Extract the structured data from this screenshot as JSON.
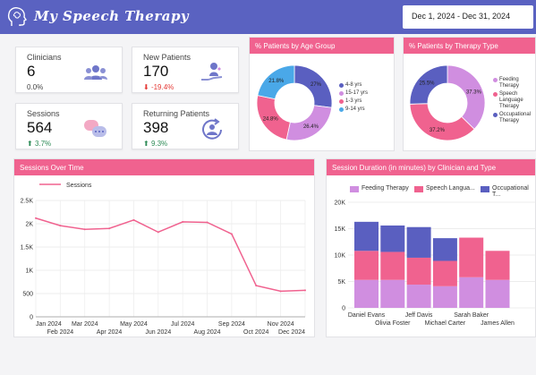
{
  "app": {
    "title": "My Speech Therapy"
  },
  "filters": {
    "date_range": "Dec 1, 2024 - Dec 31, 2024"
  },
  "kpis": {
    "clinicians": {
      "label": "Clinicians",
      "value": "6",
      "delta": "0.0%"
    },
    "new_patients": {
      "label": "New Patients",
      "value": "170",
      "delta": "-19.4%"
    },
    "sessions": {
      "label": "Sessions",
      "value": "564",
      "delta": "3.7%"
    },
    "returning_patients": {
      "label": "Returning Patients",
      "value": "398",
      "delta": "9.3%"
    }
  },
  "colors": {
    "header": "#5a62c1",
    "accent_pink": "#f0628f",
    "purple": "#5a5fc0",
    "lilac": "#d08ee0",
    "blue": "#4aa8e8",
    "pink": "#f0628f",
    "positive": "#2e8b57",
    "negative": "#e53935"
  },
  "panels": {
    "age": {
      "title": "% Patients by Age Group"
    },
    "therapy": {
      "title": "% Patients by Therapy Type"
    },
    "sessions_time": {
      "title": "Sessions Over Time"
    },
    "duration": {
      "title": "Session Duration (in minutes) by Clinician and Type"
    }
  },
  "chart_data": [
    {
      "type": "pie",
      "title": "% Patients by Age Group",
      "labels": [
        "4-8 yrs",
        "15-17 yrs",
        "1-3 yrs",
        "9-14 yrs"
      ],
      "values": [
        27.0,
        26.4,
        24.8,
        21.8
      ],
      "display": [
        "27%",
        "26.4%",
        "24.8%",
        "21.8%"
      ],
      "colors": [
        "#5a5fc0",
        "#d08ee0",
        "#f0628f",
        "#4aa8e8"
      ],
      "legend": "right"
    },
    {
      "type": "pie",
      "title": "% Patients by Therapy Type",
      "labels": [
        "Feeding Therapy",
        "Speech Language Therapy",
        "Occupational Therapy"
      ],
      "values": [
        37.3,
        37.2,
        25.5
      ],
      "display": [
        "37.3%",
        "37.2%",
        "25.5%"
      ],
      "colors": [
        "#d08ee0",
        "#f0628f",
        "#5a5fc0"
      ],
      "legend": "right"
    },
    {
      "type": "line",
      "title": "Sessions Over Time",
      "x": [
        "Jan 2024",
        "Feb 2024",
        "Mar 2024",
        "Apr 2024",
        "May 2024",
        "Jun 2024",
        "Jul 2024",
        "Aug 2024",
        "Sep 2024",
        "Oct 2024",
        "Nov 2024",
        "Dec 2024"
      ],
      "series": [
        {
          "name": "Sessions",
          "values": [
            2120,
            1960,
            1880,
            1900,
            2080,
            1820,
            2040,
            2030,
            1780,
            670,
            550,
            570
          ]
        }
      ],
      "yticks": [
        "0",
        "500",
        "1K",
        "1.5K",
        "2K",
        "2.5K"
      ],
      "ylim": [
        0,
        2500
      ],
      "legend": "top",
      "grid": true
    },
    {
      "type": "bar",
      "stacked": true,
      "title": "Session Duration (in minutes) by Clinician and Type",
      "categories": [
        "Daniel Evans",
        "Olivia Foster",
        "Jeff Davis",
        "Michael Carter",
        "Sarah Baker",
        "James Allen"
      ],
      "series": [
        {
          "name": "Feeding Therapy",
          "values": [
            5300,
            5300,
            4400,
            4100,
            5800,
            5300
          ]
        },
        {
          "name": "Speech Language Therapy",
          "values": [
            5500,
            5300,
            5100,
            4800,
            7500,
            5500
          ]
        },
        {
          "name": "Occupational Therapy",
          "values": [
            5500,
            5000,
            5800,
            4300,
            0,
            0
          ]
        }
      ],
      "legend_labels": [
        "Feeding Therapy",
        "Speech Langua...",
        "Occupational T..."
      ],
      "colors": [
        "#d08ee0",
        "#f0628f",
        "#5a5fc0"
      ],
      "yticks": [
        "0",
        "5K",
        "10K",
        "15K",
        "20K"
      ],
      "ylim": [
        0,
        20000
      ],
      "legend": "top",
      "grid": true
    }
  ]
}
